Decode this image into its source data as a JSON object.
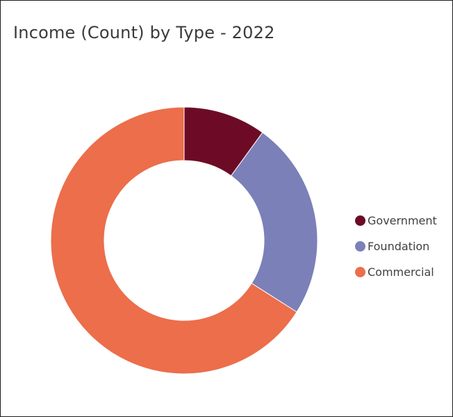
{
  "chart_data": {
    "type": "pie",
    "title": "Income (Count) by Type - 2022",
    "donut": true,
    "categories": [
      "Government",
      "Foundation",
      "Commercial"
    ],
    "values": [
      10,
      24,
      66
    ],
    "colors": [
      "#6d0b26",
      "#7b80b8",
      "#ec6e4b"
    ],
    "legend": "right",
    "start_angle_deg": 0,
    "direction": "clockwise"
  }
}
